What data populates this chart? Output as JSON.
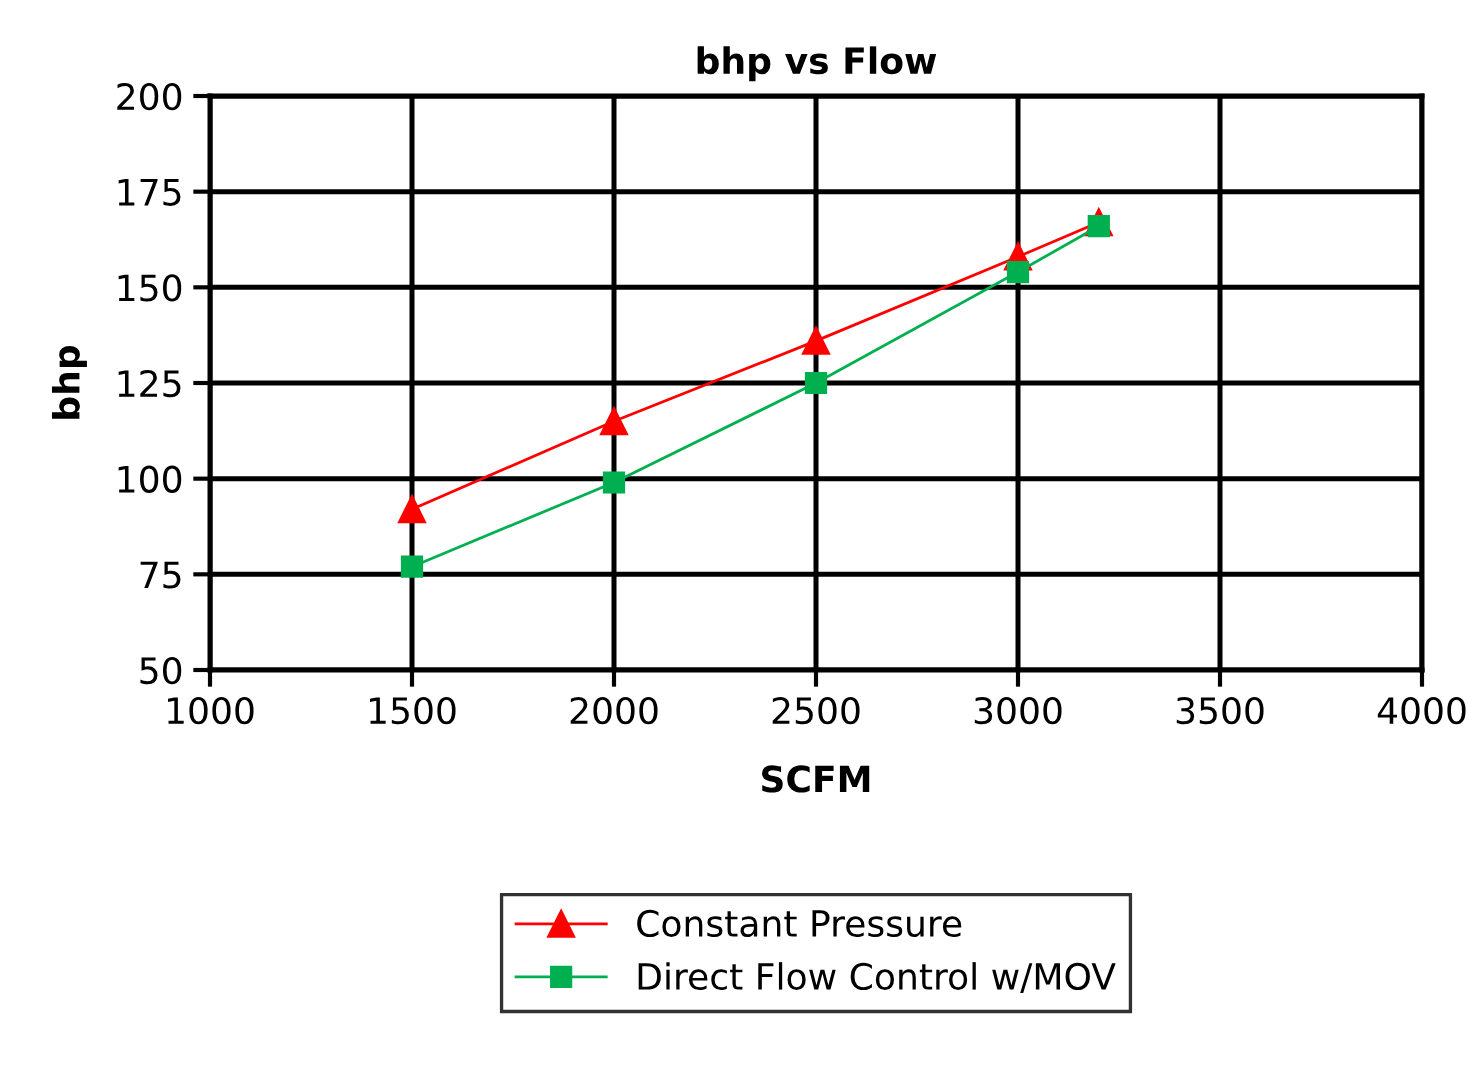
{
  "chart_data": {
    "type": "line",
    "title": "bhp vs Flow",
    "xlabel": "SCFM",
    "ylabel": "bhp",
    "xlim": [
      1000,
      4000
    ],
    "xticks": [
      1000,
      1500,
      2000,
      2500,
      3000,
      3500,
      4000
    ],
    "ylim": [
      50,
      200
    ],
    "yticks": [
      50,
      75,
      100,
      125,
      150,
      175,
      200
    ],
    "grid": true,
    "legend": "bottom",
    "series": [
      {
        "name": "Constant Pressure",
        "color": "#ff0000",
        "marker": "triangle",
        "x": [
          1500,
          2000,
          2500,
          3000,
          3200
        ],
        "values": [
          92,
          115,
          136,
          158,
          167
        ]
      },
      {
        "name": "Direct Flow Control w/MOV",
        "color": "#00b050",
        "marker": "square",
        "x": [
          1500,
          2000,
          2500,
          3000,
          3200
        ],
        "values": [
          77,
          99,
          125,
          154,
          166
        ]
      }
    ]
  }
}
